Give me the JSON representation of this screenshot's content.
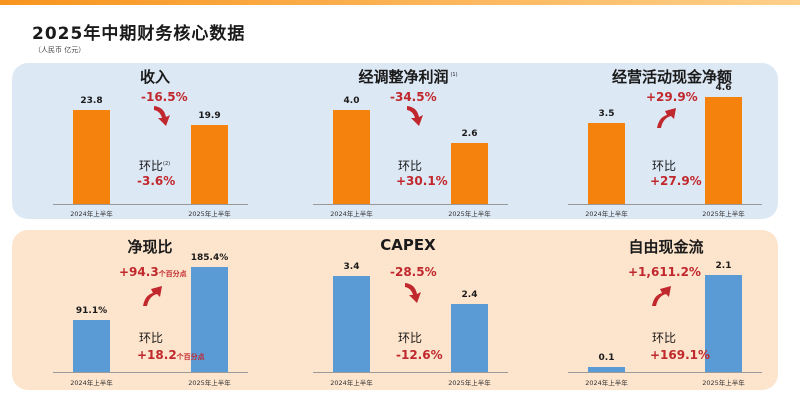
{
  "title": "2025年中期财务核心数据",
  "unit": "（人民币 亿元）",
  "colors": {
    "orange": "#f5820d",
    "blue": "#5b9bd5",
    "red": "#c0282d",
    "panel_top": "#dde8f5",
    "panel_bottom": "#fde4cc"
  },
  "chart_data": [
    {
      "type": "bar",
      "title": "收入",
      "title_note": "",
      "categories": [
        "2024年上半年",
        "2025年上半年"
      ],
      "values": [
        23.8,
        19.9
      ],
      "value_labels": [
        "23.8",
        "19.9"
      ],
      "change": "-16.5%",
      "change_suffix": "",
      "change_direction": "down",
      "hb_label": "环比",
      "hb_note": "(2)",
      "hb_value": "-3.6%",
      "hb_suffix": ""
    },
    {
      "type": "bar",
      "title": "经调整净利润",
      "title_note": "(1)",
      "categories": [
        "2024年上半年",
        "2025年上半年"
      ],
      "values": [
        4.0,
        2.6
      ],
      "value_labels": [
        "4.0",
        "2.6"
      ],
      "change": "-34.5%",
      "change_suffix": "",
      "change_direction": "down",
      "hb_label": "环比",
      "hb_note": "",
      "hb_value": "+30.1%",
      "hb_suffix": ""
    },
    {
      "type": "bar",
      "title": "经营活动现金净额",
      "title_note": "",
      "categories": [
        "2024年上半年",
        "2025年上半年"
      ],
      "values": [
        3.5,
        4.6
      ],
      "value_labels": [
        "3.5",
        "4.6"
      ],
      "change": "+29.9%",
      "change_suffix": "",
      "change_direction": "up",
      "hb_label": "环比",
      "hb_note": "",
      "hb_value": "+27.9%",
      "hb_suffix": ""
    },
    {
      "type": "bar",
      "title": "净现比",
      "title_note": "",
      "categories": [
        "2024年上半年",
        "2025年上半年"
      ],
      "values": [
        91.1,
        185.4
      ],
      "value_labels": [
        "91.1%",
        "185.4%"
      ],
      "change": "+94.3",
      "change_suffix": "个百分点",
      "change_direction": "up",
      "hb_label": "环比",
      "hb_note": "",
      "hb_value": "+18.2",
      "hb_suffix": "个百分点"
    },
    {
      "type": "bar",
      "title": "CAPEX",
      "title_note": "",
      "categories": [
        "2024年上半年",
        "2025年上半年"
      ],
      "values": [
        3.4,
        2.4
      ],
      "value_labels": [
        "3.4",
        "2.4"
      ],
      "change": "-28.5%",
      "change_suffix": "",
      "change_direction": "down",
      "hb_label": "环比",
      "hb_note": "",
      "hb_value": "-12.6%",
      "hb_suffix": ""
    },
    {
      "type": "bar",
      "title": "自由现金流",
      "title_note": "",
      "categories": [
        "2024年上半年",
        "2025年上半年"
      ],
      "values": [
        0.1,
        2.1
      ],
      "value_labels": [
        "0.1",
        "2.1"
      ],
      "change": "+1,611.2%",
      "change_suffix": "",
      "change_direction": "up",
      "hb_label": "环比",
      "hb_note": "",
      "hb_value": "+169.1%",
      "hb_suffix": ""
    }
  ]
}
